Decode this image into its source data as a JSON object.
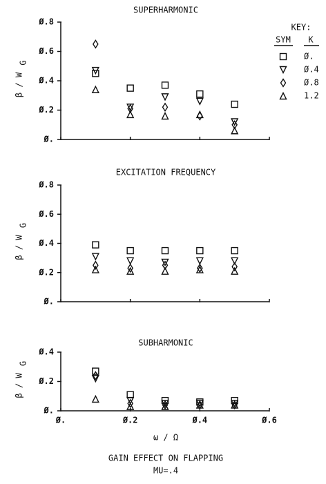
{
  "chart_data": [
    {
      "type": "scatter",
      "title": "SUPERHARMONIC",
      "ylabel": "β / W",
      "ylabel_subscript": "G",
      "x": [
        0.1,
        0.2,
        0.3,
        0.4,
        0.5
      ],
      "xlim": [
        0,
        0.6
      ],
      "xticks": [
        0,
        0.2,
        0.4,
        0.6
      ],
      "ylim": [
        0,
        0.8
      ],
      "yticks": [
        {
          "value": 0,
          "label": "Ø."
        },
        {
          "value": 0.2,
          "label": "Ø.2"
        },
        {
          "value": 0.4,
          "label": "Ø.4"
        },
        {
          "value": 0.6,
          "label": "Ø.6"
        },
        {
          "value": 0.8,
          "label": "Ø.8"
        }
      ],
      "legend": {
        "title": "KEY:",
        "headers": [
          "SYM",
          "K"
        ]
      },
      "series": [
        {
          "name": "Ø.",
          "marker": "square",
          "values": [
            0.45,
            0.35,
            0.37,
            0.31,
            0.24
          ]
        },
        {
          "name": "Ø.4",
          "marker": "triangle-down",
          "values": [
            0.47,
            0.22,
            0.29,
            0.26,
            0.12
          ]
        },
        {
          "name": "Ø.8",
          "marker": "diamond",
          "values": [
            0.65,
            0.21,
            0.22,
            0.16,
            0.1
          ]
        },
        {
          "name": "1.2",
          "marker": "triangle-up",
          "values": [
            0.34,
            0.17,
            0.16,
            0.17,
            0.06
          ]
        }
      ]
    },
    {
      "type": "scatter",
      "title": "EXCITATION FREQUENCY",
      "ylabel": "β / W",
      "ylabel_subscript": "G",
      "x": [
        0.1,
        0.2,
        0.3,
        0.4,
        0.5
      ],
      "xlim": [
        0,
        0.6
      ],
      "xticks": [
        0,
        0.2,
        0.4,
        0.6
      ],
      "ylim": [
        0,
        0.8
      ],
      "yticks": [
        {
          "value": 0,
          "label": "Ø."
        },
        {
          "value": 0.2,
          "label": "Ø.2"
        },
        {
          "value": 0.4,
          "label": "Ø.4"
        },
        {
          "value": 0.6,
          "label": "Ø.6"
        },
        {
          "value": 0.8,
          "label": "Ø.8"
        }
      ],
      "series": [
        {
          "marker": "square",
          "values": [
            0.39,
            0.35,
            0.35,
            0.35,
            0.35
          ]
        },
        {
          "marker": "triangle-down",
          "values": [
            0.31,
            0.28,
            0.27,
            0.28,
            0.28
          ]
        },
        {
          "marker": "diamond",
          "values": [
            0.25,
            0.23,
            0.25,
            0.23,
            0.24
          ]
        },
        {
          "marker": "triangle-up",
          "values": [
            0.22,
            0.21,
            0.21,
            0.22,
            0.21
          ]
        }
      ]
    },
    {
      "type": "scatter",
      "title": "SUBHARMONIC",
      "ylabel": "β / W",
      "ylabel_subscript": "G",
      "xlabel": "ω / Ω",
      "caption": [
        "GAIN EFFECT ON FLAPPING",
        "MU=.4"
      ],
      "x": [
        0.1,
        0.2,
        0.3,
        0.4,
        0.5
      ],
      "xlim": [
        0,
        0.6
      ],
      "xticks": [
        {
          "value": 0,
          "label": "Ø."
        },
        {
          "value": 0.2,
          "label": "Ø.2"
        },
        {
          "value": 0.4,
          "label": "Ø.4"
        },
        {
          "value": 0.6,
          "label": "Ø.6"
        }
      ],
      "ylim": [
        0,
        0.4
      ],
      "yticks": [
        {
          "value": 0,
          "label": "Ø."
        },
        {
          "value": 0.2,
          "label": "Ø.2"
        },
        {
          "value": 0.4,
          "label": "Ø.4"
        }
      ],
      "series": [
        {
          "marker": "square",
          "values": [
            0.27,
            0.11,
            0.07,
            0.06,
            0.07
          ]
        },
        {
          "marker": "triangle-down",
          "values": [
            0.22,
            0.07,
            0.05,
            0.05,
            0.05
          ]
        },
        {
          "marker": "diamond",
          "values": [
            0.24,
            0.05,
            0.04,
            0.04,
            0.04
          ]
        },
        {
          "marker": "triangle-up",
          "values": [
            0.08,
            0.03,
            0.03,
            0.04,
            0.04
          ]
        }
      ]
    }
  ]
}
